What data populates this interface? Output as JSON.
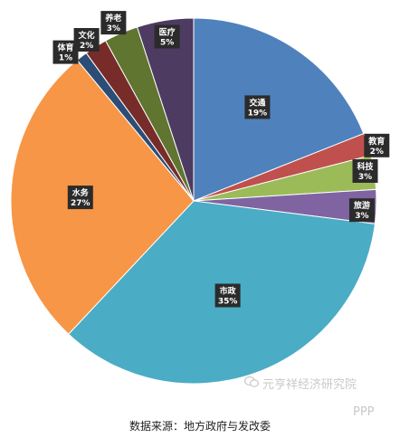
{
  "chart_data": {
    "type": "pie",
    "slices": [
      {
        "name": "交通",
        "pct_label": "19%",
        "value": 19,
        "color": "#4f81bd"
      },
      {
        "name": "教育",
        "pct_label": "2%",
        "value": 2,
        "color": "#c0504d"
      },
      {
        "name": "科技",
        "pct_label": "3%",
        "value": 3,
        "color": "#9bbb59"
      },
      {
        "name": "旅游",
        "pct_label": "3%",
        "value": 3,
        "color": "#8064a2"
      },
      {
        "name": "市政",
        "pct_label": "35%",
        "value": 35,
        "color": "#4bacc6"
      },
      {
        "name": "水务",
        "pct_label": "27%",
        "value": 27,
        "color": "#f79646"
      },
      {
        "name": "体育",
        "pct_label": "1%",
        "value": 1,
        "color": "#2c4d75"
      },
      {
        "name": "文化",
        "pct_label": "2%",
        "value": 2,
        "color": "#772c2a"
      },
      {
        "name": "养老",
        "pct_label": "3%",
        "value": 3,
        "color": "#5f7530"
      },
      {
        "name": "医疗",
        "pct_label": "5%",
        "value": 5,
        "color": "#4d3b62"
      }
    ],
    "start_angle_deg": 0,
    "direction": "clockwise"
  },
  "source": "数据来源：地方政府与发改委",
  "watermark": {
    "line1": "元亨祥经济研究院",
    "line2": "PPP"
  }
}
